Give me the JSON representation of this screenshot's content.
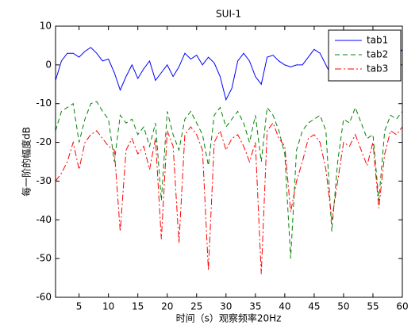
{
  "chart_data": {
    "type": "line",
    "title": "SUI-1",
    "x_label": "时间（s）观察频率20Hz",
    "y_label": "每一阶的幅度dB",
    "x": [
      1,
      2,
      3,
      4,
      5,
      6,
      7,
      8,
      9,
      10,
      11,
      12,
      13,
      14,
      15,
      16,
      17,
      18,
      19,
      20,
      21,
      22,
      23,
      24,
      25,
      26,
      27,
      28,
      29,
      30,
      31,
      32,
      33,
      34,
      35,
      36,
      37,
      38,
      39,
      40,
      41,
      42,
      43,
      44,
      45,
      46,
      47,
      48,
      49,
      50,
      51,
      52,
      53,
      54,
      55,
      56,
      57,
      58,
      59,
      60
    ],
    "series": [
      {
        "name": "tab1",
        "color": "#0000ff",
        "line_style": "solid",
        "values": [
          -4,
          1,
          3,
          3,
          2,
          3.5,
          4.5,
          3,
          1,
          1.5,
          -2,
          -6.5,
          -3,
          0,
          -3.5,
          -1,
          1,
          -4,
          -2,
          0,
          -3,
          -0.5,
          3,
          1.5,
          2.5,
          0,
          2,
          0.5,
          -3,
          -9,
          -6,
          1,
          3,
          1,
          -3,
          -5,
          2,
          2.5,
          1,
          0,
          -0.5,
          0,
          0,
          2,
          4,
          3,
          0,
          -3,
          -2,
          0,
          1,
          0.5,
          1,
          2,
          0,
          1,
          2,
          3,
          2,
          4
        ]
      },
      {
        "name": "tab2",
        "color": "#008000",
        "line_style": "dashed",
        "values": [
          -17,
          -12,
          -11,
          -10,
          -20,
          -14,
          -10,
          -9.5,
          -12,
          -14,
          -25,
          -13,
          -15,
          -14,
          -18,
          -16,
          -21,
          -15,
          -35,
          -12,
          -18,
          -22,
          -14,
          -12,
          -15,
          -18,
          -26,
          -13,
          -11,
          -16,
          -14,
          -12,
          -15,
          -20,
          -13,
          -25,
          -11,
          -13,
          -17,
          -23,
          -50,
          -22,
          -17,
          -15,
          -14,
          -13,
          -17,
          -43,
          -25,
          -14,
          -15,
          -11,
          -15,
          -19,
          -18,
          -35,
          -17,
          -13,
          -14,
          -12
        ]
      },
      {
        "name": "tab3",
        "color": "#ff0000",
        "line_style": "dashdot",
        "values": [
          -30,
          -28,
          -25,
          -20,
          -27,
          -20,
          -18,
          -17,
          -19,
          -21,
          -22,
          -43,
          -22,
          -19,
          -23,
          -21,
          -27,
          -19,
          -45,
          -17,
          -21,
          -46,
          -18,
          -16,
          -18,
          -22,
          -53,
          -20,
          -17,
          -22,
          -19,
          -18,
          -21,
          -25,
          -20,
          -54,
          -17,
          -15,
          -19,
          -21,
          -38,
          -30,
          -25,
          -19,
          -18,
          -20,
          -27,
          -40,
          -30,
          -20,
          -21,
          -18,
          -22,
          -26,
          -20,
          -37,
          -23,
          -17,
          -18,
          -16
        ]
      }
    ],
    "xlim": [
      1,
      60
    ],
    "xticks": [
      5,
      10,
      15,
      20,
      25,
      30,
      35,
      40,
      45,
      50,
      55,
      60
    ],
    "ylim": [
      -60,
      10
    ],
    "yticks": [
      -60,
      -50,
      -40,
      -30,
      -20,
      -10,
      0,
      10
    ],
    "grid": false,
    "legend": "upper right"
  }
}
